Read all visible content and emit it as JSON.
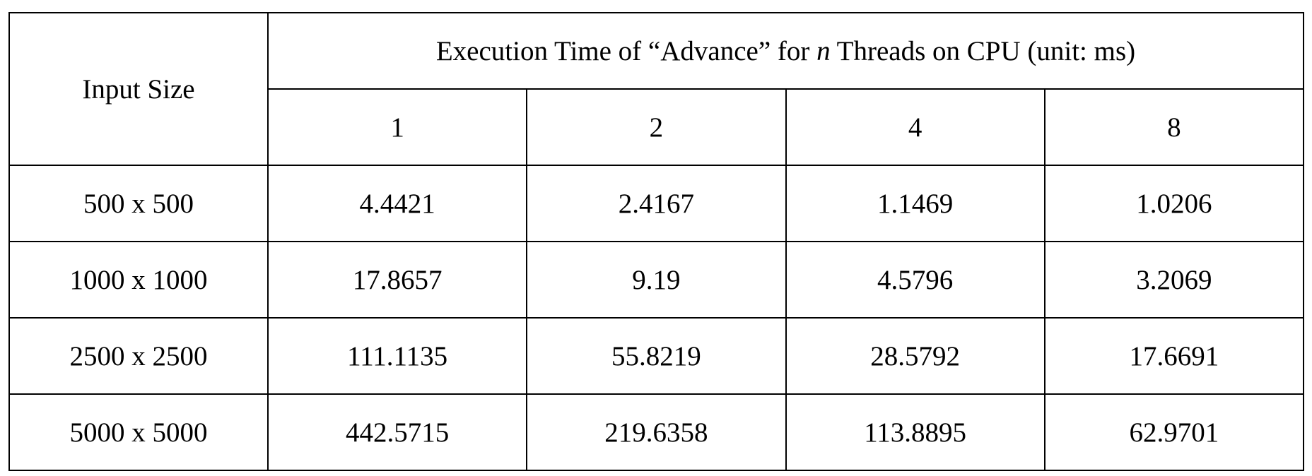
{
  "table": {
    "corner": "Input Size",
    "title": [
      "Execution Time of “Advance” for ",
      "n",
      " Threads on CPU (unit: ms)"
    ],
    "columns": [
      "1",
      "2",
      "4",
      "8"
    ],
    "rows": [
      [
        "500 x 500",
        "4.4421",
        "2.4167",
        "1.1469",
        "1.0206"
      ],
      [
        "1000 x 1000",
        "17.8657",
        "9.19",
        "4.5796",
        "3.2069"
      ],
      [
        "2500 x 2500",
        "111.1135",
        "55.8219",
        "28.5792",
        "17.6691"
      ],
      [
        "5000 x 5000",
        "442.5715",
        "219.6358",
        "113.8895",
        "62.9701"
      ]
    ]
  }
}
